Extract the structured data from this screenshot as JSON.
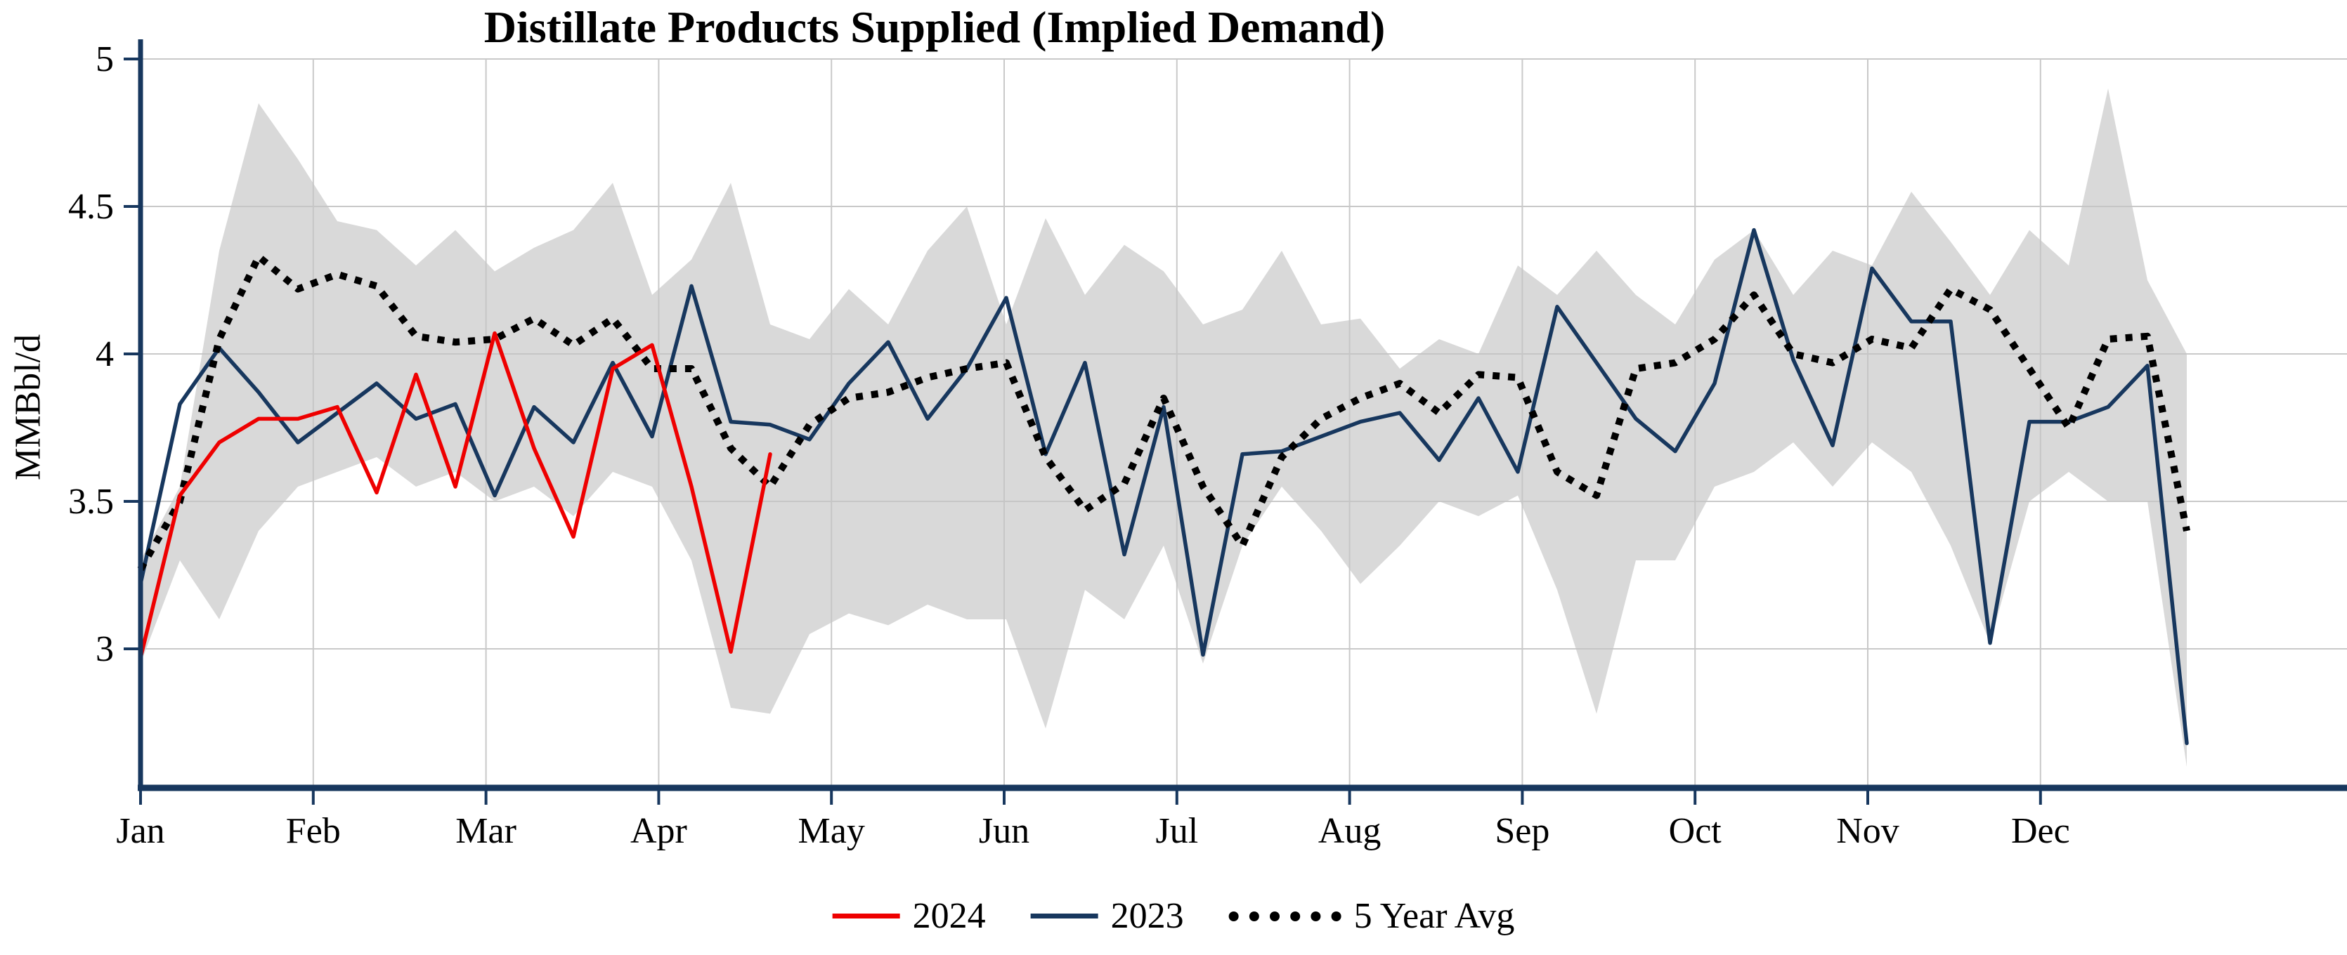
{
  "chart_data": {
    "type": "line",
    "title": "Distillate Products Supplied (Implied Demand)",
    "ylabel": "MMBbl/d",
    "xlabel": "",
    "grid": true,
    "legend_position": "bottom",
    "x_axis": {
      "unit": "week",
      "weeks": 53,
      "months": [
        "Jan",
        "Feb",
        "Mar",
        "Apr",
        "May",
        "Jun",
        "Jul",
        "Aug",
        "Sep",
        "Oct",
        "Nov",
        "Dec"
      ]
    },
    "y_axis": {
      "ticks": [
        5,
        4.5,
        4,
        3.5,
        3
      ],
      "labels": [
        "5",
        "4.5",
        "4",
        "3.5",
        "3"
      ],
      "ylim": [
        2.53,
        5
      ]
    },
    "colors": {
      "2024": "#ee0000",
      "2023": "#17375e",
      "avg": "#000000",
      "band": "#c4c4c4",
      "axis": "#17375e",
      "grid": "#c9c9c9"
    },
    "band": {
      "name": "5-year range",
      "max": [
        3.3,
        3.55,
        4.35,
        4.85,
        4.66,
        4.45,
        4.42,
        4.3,
        4.42,
        4.28,
        4.36,
        4.42,
        4.58,
        4.2,
        4.32,
        4.58,
        4.1,
        4.05,
        4.22,
        4.1,
        4.35,
        4.5,
        4.1,
        4.46,
        4.2,
        4.37,
        4.28,
        4.1,
        4.15,
        4.35,
        4.1,
        4.12,
        3.95,
        4.05,
        4.0,
        4.3,
        4.2,
        4.35,
        4.2,
        4.1,
        4.32,
        4.42,
        4.2,
        4.35,
        4.3,
        4.55,
        4.38,
        4.2,
        4.42,
        4.3,
        4.9,
        4.25,
        4.0
      ],
      "min": [
        2.95,
        3.3,
        3.1,
        3.4,
        3.55,
        3.6,
        3.65,
        3.55,
        3.6,
        3.5,
        3.55,
        3.45,
        3.6,
        3.55,
        3.3,
        2.8,
        2.78,
        3.05,
        3.12,
        3.08,
        3.15,
        3.1,
        3.1,
        2.73,
        3.2,
        3.1,
        3.35,
        2.95,
        3.35,
        3.55,
        3.4,
        3.22,
        3.35,
        3.5,
        3.45,
        3.52,
        3.2,
        2.78,
        3.3,
        3.3,
        3.55,
        3.6,
        3.7,
        3.55,
        3.7,
        3.6,
        3.35,
        3.02,
        3.5,
        3.6,
        3.5,
        3.5,
        2.6
      ]
    },
    "series": [
      {
        "name": "2024",
        "style": "solid",
        "color_key": "2024",
        "values": [
          2.97,
          3.52,
          3.7,
          3.78,
          3.78,
          3.82,
          3.53,
          3.93,
          3.55,
          4.07,
          3.68,
          3.38,
          3.95,
          4.03,
          3.55,
          2.99,
          3.66
        ]
      },
      {
        "name": "2023",
        "style": "solid",
        "color_key": "2023",
        "values": [
          3.22,
          3.83,
          4.02,
          3.87,
          3.7,
          3.8,
          3.9,
          3.78,
          3.83,
          3.52,
          3.82,
          3.7,
          3.97,
          3.72,
          4.23,
          3.77,
          3.76,
          3.71,
          3.9,
          4.04,
          3.78,
          3.95,
          4.19,
          3.66,
          3.97,
          3.32,
          3.82,
          2.98,
          3.66,
          3.67,
          3.72,
          3.77,
          3.8,
          3.64,
          3.85,
          3.6,
          4.16,
          3.97,
          3.78,
          3.67,
          3.9,
          4.42,
          3.98,
          3.69,
          4.29,
          4.11,
          4.11,
          3.02,
          3.77,
          3.77,
          3.82,
          3.96,
          2.68
        ]
      },
      {
        "name": "5 Year Avg",
        "style": "dotted",
        "color_key": "avg",
        "values": [
          3.27,
          3.5,
          4.05,
          4.33,
          4.22,
          4.27,
          4.23,
          4.06,
          4.04,
          4.05,
          4.12,
          4.03,
          4.12,
          3.95,
          3.95,
          3.68,
          3.55,
          3.76,
          3.85,
          3.87,
          3.92,
          3.95,
          3.97,
          3.65,
          3.47,
          3.56,
          3.85,
          3.55,
          3.35,
          3.65,
          3.78,
          3.85,
          3.9,
          3.8,
          3.93,
          3.92,
          3.6,
          3.52,
          3.95,
          3.97,
          4.05,
          4.2,
          4.0,
          3.97,
          4.05,
          4.02,
          4.22,
          4.15,
          3.95,
          3.75,
          4.05,
          4.06,
          3.4
        ]
      }
    ]
  }
}
